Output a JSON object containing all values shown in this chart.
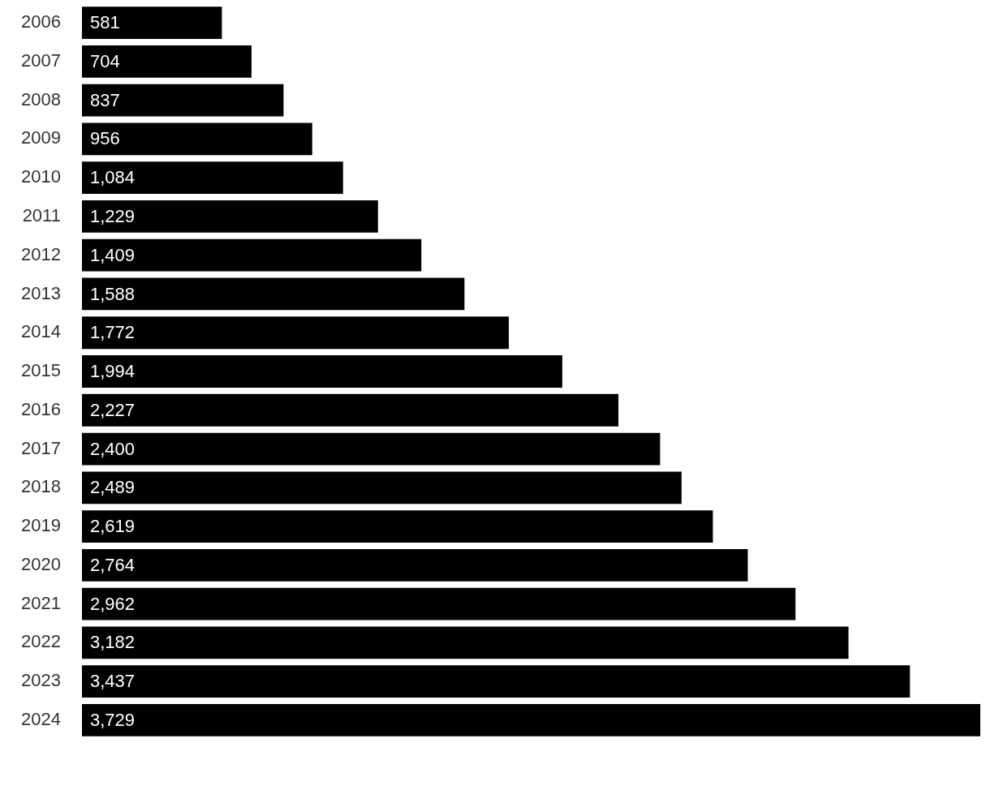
{
  "chart_data": {
    "type": "bar",
    "orientation": "horizontal",
    "data_labels": true,
    "categories": [
      "2006",
      "2007",
      "2008",
      "2009",
      "2010",
      "2011",
      "2012",
      "2013",
      "2014",
      "2015",
      "2016",
      "2017",
      "2018",
      "2019",
      "2020",
      "2021",
      "2022",
      "2023",
      "2024"
    ],
    "values": [
      581,
      704,
      837,
      956,
      1084,
      1229,
      1409,
      1588,
      1772,
      1994,
      2227,
      2400,
      2489,
      2619,
      2764,
      2962,
      3182,
      3437,
      3729
    ],
    "value_labels": [
      "581",
      "704",
      "837",
      "956",
      "1,084",
      "1,229",
      "1,409",
      "1,588",
      "1,772",
      "1,994",
      "2,227",
      "2,400",
      "2,489",
      "2,619",
      "2,764",
      "2,962",
      "3,182",
      "3,437",
      "3,729"
    ],
    "color": "#000000"
  }
}
